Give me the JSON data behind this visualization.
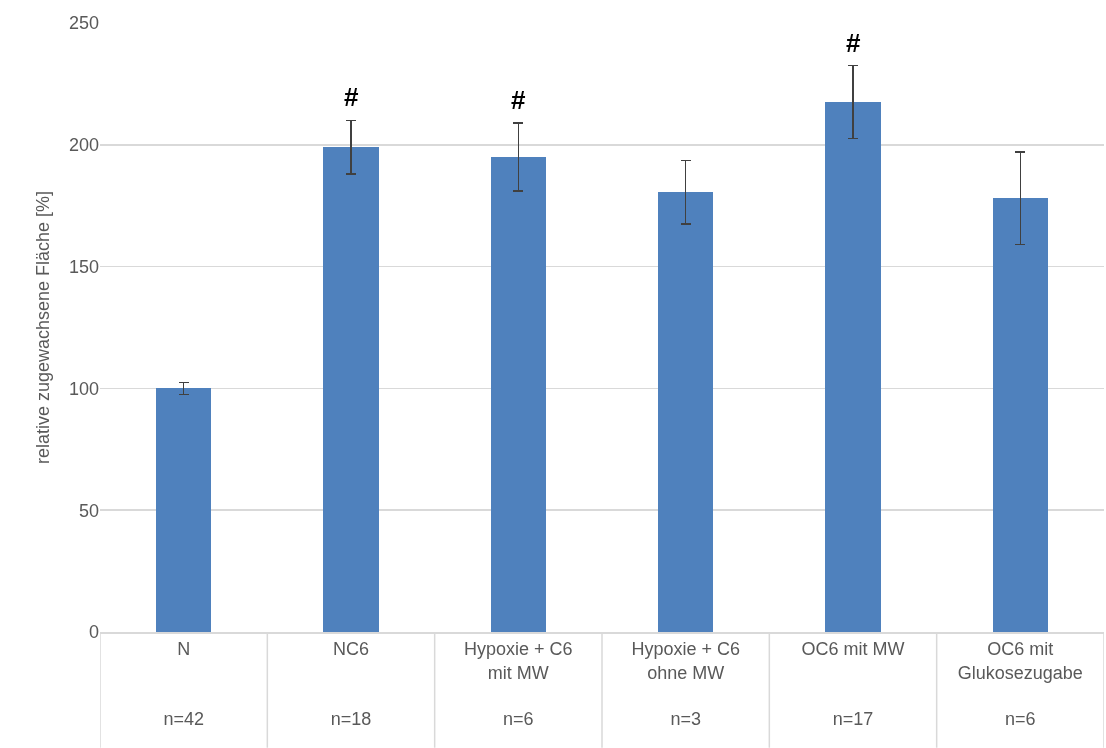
{
  "chart_data": {
    "type": "bar",
    "ylabel": "relative zugewachsene Fläche [%]",
    "categories": [
      "N\nn=42",
      "NC6\nn=18",
      "Hypoxie + C6\nmit MW\nn=6",
      "Hypoxie + C6\nohne MW\nn=3",
      "OC6 mit MW\nn=17",
      "OC6 mit\nGlukosezugabe\nn=6"
    ],
    "values": [
      100,
      199,
      195,
      180.5,
      217.5,
      178
    ],
    "errors": [
      2.5,
      11,
      14,
      13,
      15,
      19
    ],
    "color": "#4f81bd",
    "ylim": [
      0,
      250
    ],
    "yticks": [
      0,
      50,
      100,
      150,
      200,
      250
    ],
    "grid": "y",
    "legend": false,
    "annotations": [
      {
        "text": "#",
        "x": "NC6\nn=18",
        "y": 199
      },
      {
        "text": "#",
        "x": "Hypoxie + C6\nmit MW\nn=6",
        "y": 195
      },
      {
        "text": "#",
        "x": "OC6 mit MW\nn=17",
        "y": 217.5
      }
    ]
  }
}
